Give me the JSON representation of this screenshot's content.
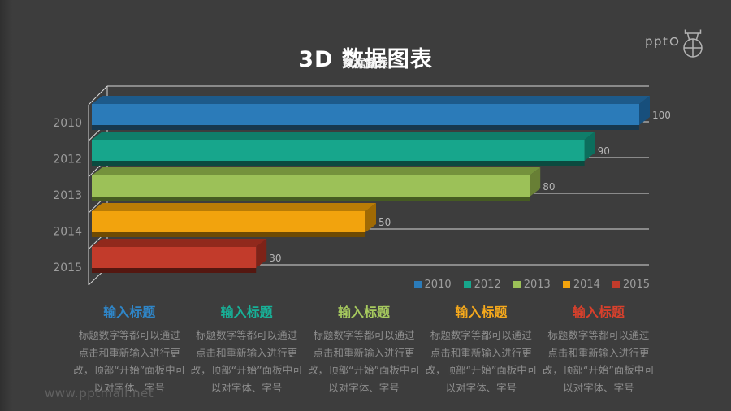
{
  "page": {
    "background": "#3d3d3d",
    "watermark": "www.pptmall.net"
  },
  "header": {
    "title": "3D 数据图表",
    "subtitle": "数据图表"
  },
  "logo": {
    "text": "ppt",
    "icon": "flask-crosshair-icon",
    "color": "#b3b3b3"
  },
  "chart_data": {
    "type": "bar",
    "orientation": "horizontal",
    "style": "3d-extruded",
    "categories": [
      "2010",
      "2012",
      "2013",
      "2014",
      "2015"
    ],
    "values": [
      100,
      90,
      80,
      50,
      30
    ],
    "value_labels": [
      "100",
      "90",
      "80",
      "50",
      "30"
    ],
    "xlim": [
      0,
      100
    ],
    "grid": "partial gridline to the right of each bar plus top gridline",
    "legend_position": "bottom-right",
    "axis_color": "#d8d8d8",
    "category_label_color": "#9d9d9d",
    "value_label_color": "#b5b5b5",
    "series_colors": [
      {
        "name": "2010",
        "front": "#2b7bb9",
        "top": "#1d5a8a",
        "side": "#174f7c",
        "shadow": "#17384f"
      },
      {
        "name": "2012",
        "front": "#17a68c",
        "top": "#0f7e6a",
        "side": "#0c6e5d",
        "shadow": "#0b4a3f"
      },
      {
        "name": "2013",
        "front": "#9cc158",
        "top": "#74923c",
        "side": "#687f35",
        "shadow": "#465c22"
      },
      {
        "name": "2014",
        "front": "#f2a30d",
        "top": "#b97c06",
        "side": "#a06a04",
        "shadow": "#6e4a03"
      },
      {
        "name": "2015",
        "front": "#c23b2b",
        "top": "#91291c",
        "side": "#7e2318",
        "shadow": "#541710"
      }
    ]
  },
  "legend": {
    "items": [
      {
        "label": "2010",
        "color": "#2b7bb9"
      },
      {
        "label": "2012",
        "color": "#17a68c"
      },
      {
        "label": "2013",
        "color": "#9cc158"
      },
      {
        "label": "2014",
        "color": "#f2a30d"
      },
      {
        "label": "2015",
        "color": "#c23b2b"
      }
    ]
  },
  "footer_columns": [
    {
      "heading": "输入标题",
      "color": "#2f86c8",
      "lines": [
        "标题数字等都可以通过",
        "点击和重新输入进行更",
        "改，顶部“开始”面板中可",
        "以对字体、字号"
      ]
    },
    {
      "heading": "输入标题",
      "color": "#18b097",
      "lines": [
        "标题数字等都可以通过",
        "点击和重新输入进行更",
        "改，顶部“开始”面板中可",
        "以对字体、字号"
      ]
    },
    {
      "heading": "输入标题",
      "color": "#a6c95e",
      "lines": [
        "标题数字等都可以通过",
        "点击和重新输入进行更",
        "改，顶部“开始”面板中可",
        "以对字体、字号"
      ]
    },
    {
      "heading": "输入标题",
      "color": "#f6a91c",
      "lines": [
        "标题数字等都可以通过",
        "点击和重新输入进行更",
        "改，顶部“开始”面板中可",
        "以对字体、字号"
      ]
    },
    {
      "heading": "输入标题",
      "color": "#d8402c",
      "lines": [
        "标题数字等都可以通过",
        "点击和重新输入进行更",
        "改，顶部“开始”面板中可",
        "以对字体、字号"
      ]
    }
  ]
}
